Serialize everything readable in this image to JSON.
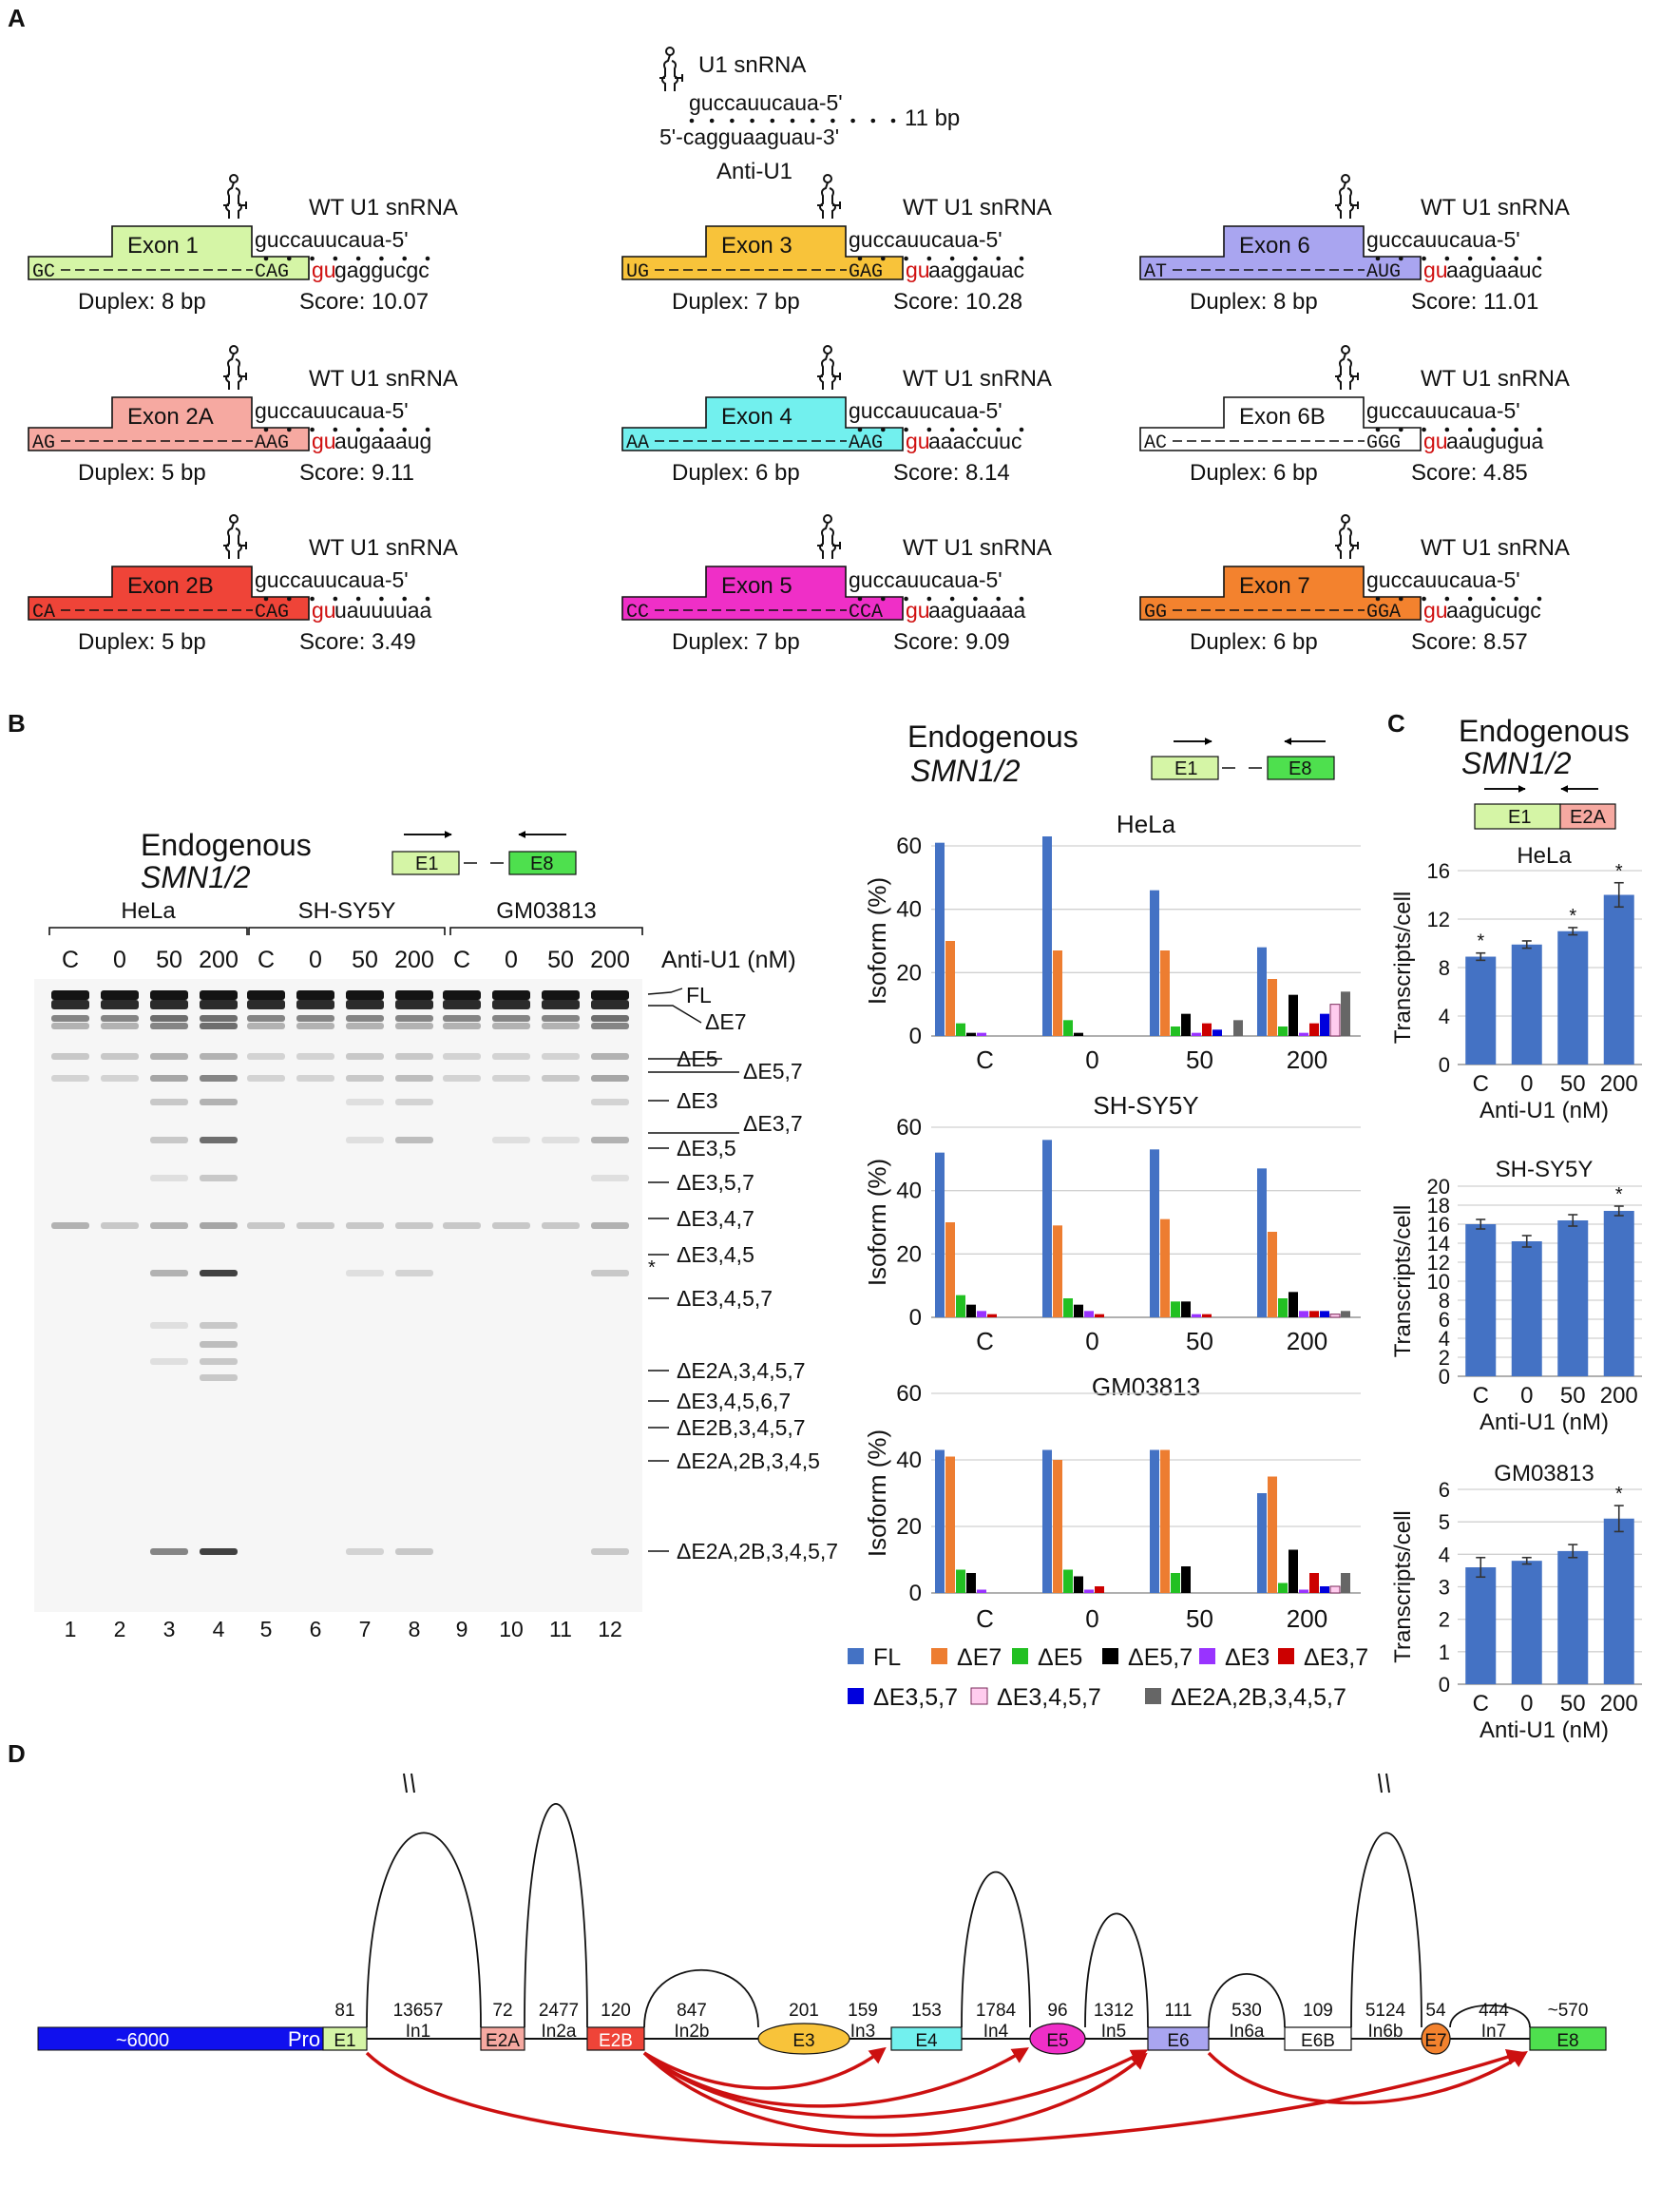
{
  "panels": {
    "A": "A",
    "B": "B",
    "C": "C",
    "D": "D"
  },
  "colors": {
    "exon1": "#d5f5a6",
    "exon2A": "#f6a9a1",
    "exon2B": "#ef4438",
    "exon3": "#f8c33a",
    "exon4": "#72f0ee",
    "exon5": "#ef2fc7",
    "exon6": "#a9a5f0",
    "exon6B": "#ffffff",
    "exon7": "#f3822e",
    "exon8": "#4ee04e",
    "promoter": "#1010ee",
    "splice_arrow": "#cc1010",
    "gu": "#d01010"
  },
  "panelA": {
    "top": {
      "label": "U1 snRNA",
      "upper": "guccauucaua-5'",
      "lower": "5'-cagguaaguau-3'",
      "bp": "11 bp",
      "name": "Anti-U1"
    },
    "wt_label": "WT U1 snRNA",
    "u1_seq": "guccauucaua-5'",
    "exons": [
      {
        "name": "Exon 1",
        "left": "GC",
        "right": "CAG",
        "tail": "gaggucgc",
        "duplex": "Duplex: 8 bp",
        "score": "Score: 10.07",
        "color": "exon1"
      },
      {
        "name": "Exon 3",
        "left": "UG",
        "right": "GAG",
        "tail": "aaggauac",
        "duplex": "Duplex: 7 bp",
        "score": "Score: 10.28",
        "color": "exon3"
      },
      {
        "name": "Exon 6",
        "left": "AT",
        "right": "AUG",
        "tail": "aaguaauc",
        "duplex": "Duplex: 8 bp",
        "score": "Score: 11.01",
        "color": "exon6"
      },
      {
        "name": "Exon 2A",
        "left": "AG",
        "right": "AAG",
        "tail": "augaaaug",
        "duplex": "Duplex: 5 bp",
        "score": "Score: 9.11",
        "color": "exon2A"
      },
      {
        "name": "Exon 4",
        "left": "AA",
        "right": "AAG",
        "tail": "aaaccuuc",
        "duplex": "Duplex: 6 bp",
        "score": "Score: 8.14",
        "color": "exon4"
      },
      {
        "name": "Exon 6B",
        "left": "AC",
        "right": "GGG",
        "tail": "aaugugua",
        "duplex": "Duplex: 6 bp",
        "score": "Score: 4.85",
        "color": "exon6B"
      },
      {
        "name": "Exon 2B",
        "left": "CA",
        "right": "CAG",
        "tail": "uauuuuaa",
        "duplex": "Duplex: 5 bp",
        "score": "Score: 3.49",
        "color": "exon2B"
      },
      {
        "name": "Exon 5",
        "left": "CC",
        "right": "CCA",
        "tail": "aaguaaaa",
        "duplex": "Duplex: 7 bp",
        "score": "Score: 9.09",
        "color": "exon5"
      },
      {
        "name": "Exon 7",
        "left": "GG",
        "right": "GGA",
        "tail": "aagucugc",
        "duplex": "Duplex: 6 bp",
        "score": "Score: 8.57",
        "color": "exon7"
      }
    ],
    "gu": "gu"
  },
  "panelB": {
    "title1": "Endogenous",
    "title2": "SMN1/2",
    "primer_e1": "E1",
    "primer_e8": "E8",
    "cell_lines": [
      "HeLa",
      "SH-SY5Y",
      "GM03813"
    ],
    "lane_conditions": [
      "C",
      "0",
      "50",
      "200",
      "C",
      "0",
      "50",
      "200",
      "C",
      "0",
      "50",
      "200"
    ],
    "treatment_label": "Anti-U1 (nM)",
    "lane_numbers": [
      "1",
      "2",
      "3",
      "4",
      "5",
      "6",
      "7",
      "8",
      "9",
      "10",
      "11",
      "12"
    ],
    "band_labels": [
      "FL",
      "ΔE7",
      "ΔE5",
      "ΔE5,7",
      "ΔE3",
      "ΔE3,7",
      "ΔE3,5",
      "ΔE3,5,7",
      "ΔE3,4,7",
      "ΔE3,4,5",
      "ΔE3,4,5,7",
      "ΔE2A,3,4,5,7",
      "ΔE3,4,5,6,7",
      "ΔE2B,3,4,5,7",
      "ΔE2A,2B,3,4,5",
      "ΔE2A,2B,3,4,5,7"
    ],
    "asterisk": "*"
  },
  "chart_data": [
    {
      "type": "bar",
      "title": "HeLa",
      "ylabel": "Isoform (%)",
      "categories": [
        "C",
        "0",
        "50",
        "200"
      ],
      "ylim": [
        0,
        60
      ],
      "yticks": [
        "0",
        "20",
        "40",
        "60"
      ],
      "series": [
        {
          "name": "FL",
          "color": "#4472c4",
          "values": [
            61,
            63,
            46,
            28
          ]
        },
        {
          "name": "ΔE7",
          "color": "#ed7d31",
          "values": [
            30,
            27,
            27,
            18
          ]
        },
        {
          "name": "ΔE5",
          "color": "#22c022",
          "values": [
            4,
            5,
            3,
            3
          ]
        },
        {
          "name": "ΔE5,7",
          "color": "#000000",
          "values": [
            1,
            1,
            7,
            13
          ]
        },
        {
          "name": "ΔE3",
          "color": "#9933ff",
          "values": [
            1,
            0,
            1,
            1
          ]
        },
        {
          "name": "ΔE3,7",
          "color": "#cc0000",
          "values": [
            0,
            0,
            4,
            4
          ]
        },
        {
          "name": "ΔE3,5,7",
          "color": "#0000dd",
          "values": [
            0,
            0,
            2,
            7
          ]
        },
        {
          "name": "ΔE3,4,5,7",
          "color": "#ffccee",
          "values": [
            0,
            0,
            0,
            10
          ]
        },
        {
          "name": "ΔE2A,2B,3,4,5,7",
          "color": "#666666",
          "values": [
            0,
            0,
            5,
            14
          ]
        }
      ]
    },
    {
      "type": "bar",
      "title": "SH-SY5Y",
      "ylabel": "Isoform (%)",
      "categories": [
        "C",
        "0",
        "50",
        "200"
      ],
      "ylim": [
        0,
        60
      ],
      "yticks": [
        "0",
        "20",
        "40",
        "60"
      ],
      "series": [
        {
          "name": "FL",
          "color": "#4472c4",
          "values": [
            52,
            56,
            53,
            47
          ]
        },
        {
          "name": "ΔE7",
          "color": "#ed7d31",
          "values": [
            30,
            29,
            31,
            27
          ]
        },
        {
          "name": "ΔE5",
          "color": "#22c022",
          "values": [
            7,
            6,
            5,
            6
          ]
        },
        {
          "name": "ΔE5,7",
          "color": "#000000",
          "values": [
            4,
            4,
            5,
            8
          ]
        },
        {
          "name": "ΔE3",
          "color": "#9933ff",
          "values": [
            2,
            2,
            1,
            2
          ]
        },
        {
          "name": "ΔE3,7",
          "color": "#cc0000",
          "values": [
            1,
            1,
            1,
            2
          ]
        },
        {
          "name": "ΔE3,5,7",
          "color": "#0000dd",
          "values": [
            0,
            0,
            0,
            2
          ]
        },
        {
          "name": "ΔE3,4,5,7",
          "color": "#ffccee",
          "values": [
            0,
            0,
            0,
            1
          ]
        },
        {
          "name": "ΔE2A,2B,3,4,5,7",
          "color": "#666666",
          "values": [
            0,
            0,
            0,
            2
          ]
        }
      ]
    },
    {
      "type": "bar",
      "title": "GM03813",
      "ylabel": "Isoform (%)",
      "categories": [
        "C",
        "0",
        "50",
        "200"
      ],
      "ylim": [
        0,
        60
      ],
      "yticks": [
        "0",
        "20",
        "40",
        "60"
      ],
      "series": [
        {
          "name": "FL",
          "color": "#4472c4",
          "values": [
            43,
            43,
            43,
            30
          ]
        },
        {
          "name": "ΔE7",
          "color": "#ed7d31",
          "values": [
            41,
            40,
            43,
            35
          ]
        },
        {
          "name": "ΔE5",
          "color": "#22c022",
          "values": [
            7,
            7,
            6,
            3
          ]
        },
        {
          "name": "ΔE5,7",
          "color": "#000000",
          "values": [
            6,
            5,
            8,
            13
          ]
        },
        {
          "name": "ΔE3",
          "color": "#9933ff",
          "values": [
            1,
            1,
            0,
            1
          ]
        },
        {
          "name": "ΔE3,7",
          "color": "#cc0000",
          "values": [
            0,
            2,
            0,
            6
          ]
        },
        {
          "name": "ΔE3,5,7",
          "color": "#0000dd",
          "values": [
            0,
            0,
            0,
            2
          ]
        },
        {
          "name": "ΔE3,4,5,7",
          "color": "#ffccee",
          "values": [
            0,
            0,
            0,
            2
          ]
        },
        {
          "name": "ΔE2A,2B,3,4,5,7",
          "color": "#666666",
          "values": [
            0,
            0,
            0,
            6
          ]
        }
      ]
    },
    {
      "type": "bar",
      "title": "HeLa",
      "ylabel": "Transcripts/cell",
      "xlabel": "Anti-U1 (nM)",
      "categories": [
        "C",
        "0",
        "50",
        "200"
      ],
      "ylim": [
        0,
        16
      ],
      "yticks": [
        "0",
        "4",
        "8",
        "12",
        "16"
      ],
      "values": [
        8.9,
        9.9,
        11.0,
        14.0
      ],
      "errors": [
        0.3,
        0.3,
        0.3,
        1.0
      ],
      "significant": [
        "*",
        "",
        "*",
        "*"
      ]
    },
    {
      "type": "bar",
      "title": "SH-SY5Y",
      "ylabel": "Transcripts/cell",
      "xlabel": "Anti-U1 (nM)",
      "categories": [
        "C",
        "0",
        "50",
        "200"
      ],
      "ylim": [
        0,
        20
      ],
      "yticks": [
        "0",
        "2",
        "4",
        "6",
        "8",
        "10",
        "12",
        "14",
        "16",
        "18",
        "20"
      ],
      "values": [
        16.0,
        14.2,
        16.4,
        17.4
      ],
      "errors": [
        0.5,
        0.6,
        0.6,
        0.5
      ],
      "significant": [
        "",
        "",
        "",
        "*"
      ]
    },
    {
      "type": "bar",
      "title": "GM03813",
      "ylabel": "Transcripts/cell",
      "xlabel": "Anti-U1 (nM)",
      "categories": [
        "C",
        "0",
        "50",
        "200"
      ],
      "ylim": [
        0,
        6
      ],
      "yticks": [
        "0",
        "1",
        "2",
        "3",
        "4",
        "5",
        "6"
      ],
      "values": [
        3.6,
        3.8,
        4.1,
        5.1
      ],
      "errors": [
        0.3,
        0.1,
        0.2,
        0.4
      ],
      "significant": [
        "",
        "",
        "",
        "*"
      ]
    }
  ],
  "panelC": {
    "title1": "Endogenous",
    "title2": "SMN1/2",
    "primer_e1": "E1",
    "primer_e2a": "E2A"
  },
  "panelD": {
    "segments": [
      {
        "label": "~6000",
        "sub": "Pro",
        "kind": "promoter"
      },
      {
        "label": "81",
        "exon": "E1"
      },
      {
        "label": "13657",
        "intron": "In1"
      },
      {
        "label": "72",
        "exon": "E2A"
      },
      {
        "label": "2477",
        "intron": "In2a"
      },
      {
        "label": "120",
        "exon": "E2B"
      },
      {
        "label": "847",
        "intron": "In2b"
      },
      {
        "label": "201",
        "exon": "E3"
      },
      {
        "label": "159",
        "intron": "In3"
      },
      {
        "label": "153",
        "exon": "E4"
      },
      {
        "label": "1784",
        "intron": "In4"
      },
      {
        "label": "96",
        "exon": "E5"
      },
      {
        "label": "1312",
        "intron": "In5"
      },
      {
        "label": "111",
        "exon": "E6"
      },
      {
        "label": "530",
        "intron": "In6a"
      },
      {
        "label": "109",
        "exon": "E6B"
      },
      {
        "label": "5124",
        "intron": "In6b"
      },
      {
        "label": "54",
        "exon": "E7"
      },
      {
        "label": "444",
        "intron": "In7"
      },
      {
        "label": "~570",
        "exon": "E8"
      }
    ]
  }
}
